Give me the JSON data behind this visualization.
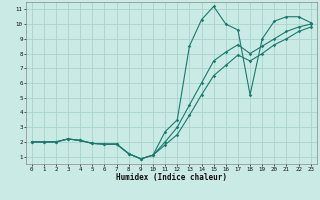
{
  "xlabel": "Humidex (Indice chaleur)",
  "background_color": "#caeae5",
  "grid_color": "#aad4ce",
  "line_color": "#1a7a6e",
  "xlim": [
    -0.5,
    23.5
  ],
  "ylim": [
    0.5,
    11.5
  ],
  "xticks": [
    0,
    1,
    2,
    3,
    4,
    5,
    6,
    7,
    8,
    9,
    10,
    11,
    12,
    13,
    14,
    15,
    16,
    17,
    18,
    19,
    20,
    21,
    22,
    23
  ],
  "yticks": [
    1,
    2,
    3,
    4,
    5,
    6,
    7,
    8,
    9,
    10,
    11
  ],
  "s1_x": [
    0,
    1,
    2,
    3,
    4,
    5,
    6,
    7,
    8,
    9,
    10,
    11,
    12,
    13,
    14,
    15,
    16,
    17,
    18,
    19,
    20,
    21,
    22,
    23
  ],
  "s1_y": [
    2,
    2,
    2,
    2.2,
    2.1,
    1.9,
    1.85,
    1.85,
    1.2,
    0.85,
    1.1,
    2.7,
    3.5,
    8.5,
    10.3,
    11.2,
    10.0,
    9.6,
    5.2,
    9.0,
    10.2,
    10.5,
    10.5,
    10.1
  ],
  "s2_x": [
    0,
    1,
    2,
    3,
    4,
    5,
    6,
    7,
    8,
    9,
    10,
    11,
    12,
    13,
    14,
    15,
    16,
    17,
    18,
    19,
    20,
    21,
    22,
    23
  ],
  "s2_y": [
    2,
    2,
    2,
    2.2,
    2.1,
    1.9,
    1.85,
    1.85,
    1.2,
    0.85,
    1.1,
    2.0,
    3.0,
    4.5,
    6.0,
    7.5,
    8.1,
    8.6,
    8.0,
    8.5,
    9.0,
    9.5,
    9.8,
    10.0
  ],
  "s3_x": [
    0,
    1,
    2,
    3,
    4,
    5,
    6,
    7,
    8,
    9,
    10,
    11,
    12,
    13,
    14,
    15,
    16,
    17,
    18,
    19,
    20,
    21,
    22,
    23
  ],
  "s3_y": [
    2,
    2,
    2,
    2.2,
    2.1,
    1.9,
    1.85,
    1.85,
    1.2,
    0.85,
    1.1,
    1.8,
    2.5,
    3.8,
    5.2,
    6.5,
    7.2,
    7.9,
    7.5,
    8.0,
    8.6,
    9.0,
    9.5,
    9.8
  ]
}
